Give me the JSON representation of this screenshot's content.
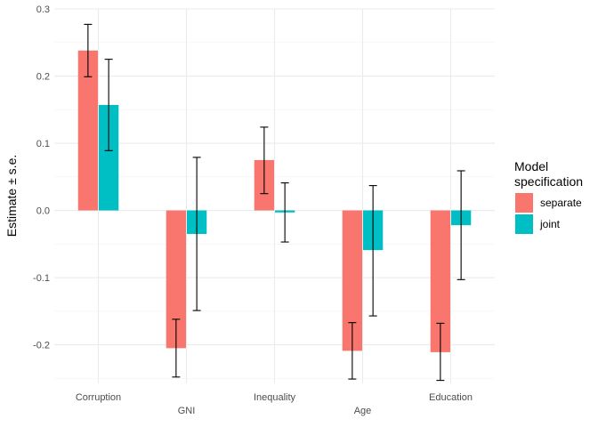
{
  "chart_data": {
    "type": "bar",
    "categories": [
      "Corruption",
      "GNI",
      "Inequality",
      "Age",
      "Education"
    ],
    "series": [
      {
        "name": "separate",
        "color": "#F8766D",
        "values": [
          0.238,
          -0.205,
          0.075,
          -0.209,
          -0.211
        ],
        "se_lower": [
          0.199,
          -0.248,
          0.025,
          -0.251,
          -0.253
        ],
        "se_upper": [
          0.277,
          -0.162,
          0.124,
          -0.167,
          -0.168
        ]
      },
      {
        "name": "joint",
        "color": "#00BFC4",
        "values": [
          0.157,
          -0.035,
          -0.003,
          -0.059,
          -0.022
        ],
        "se_lower": [
          0.089,
          -0.149,
          -0.047,
          -0.157,
          -0.103
        ],
        "se_upper": [
          0.225,
          0.079,
          0.041,
          0.037,
          0.059
        ]
      }
    ],
    "ylabel": "Estimate ± s.e.",
    "xlabel": "",
    "ylim": [
      -0.2575,
      0.3
    ],
    "yticks": [
      "0.3",
      "0.2",
      "0.1",
      "0.0",
      "-0.1",
      "-0.2"
    ],
    "grid": true,
    "legend": {
      "title_line1": "Model",
      "title_line2": "specification",
      "placement": "right",
      "entries": [
        "separate",
        "joint"
      ]
    }
  }
}
